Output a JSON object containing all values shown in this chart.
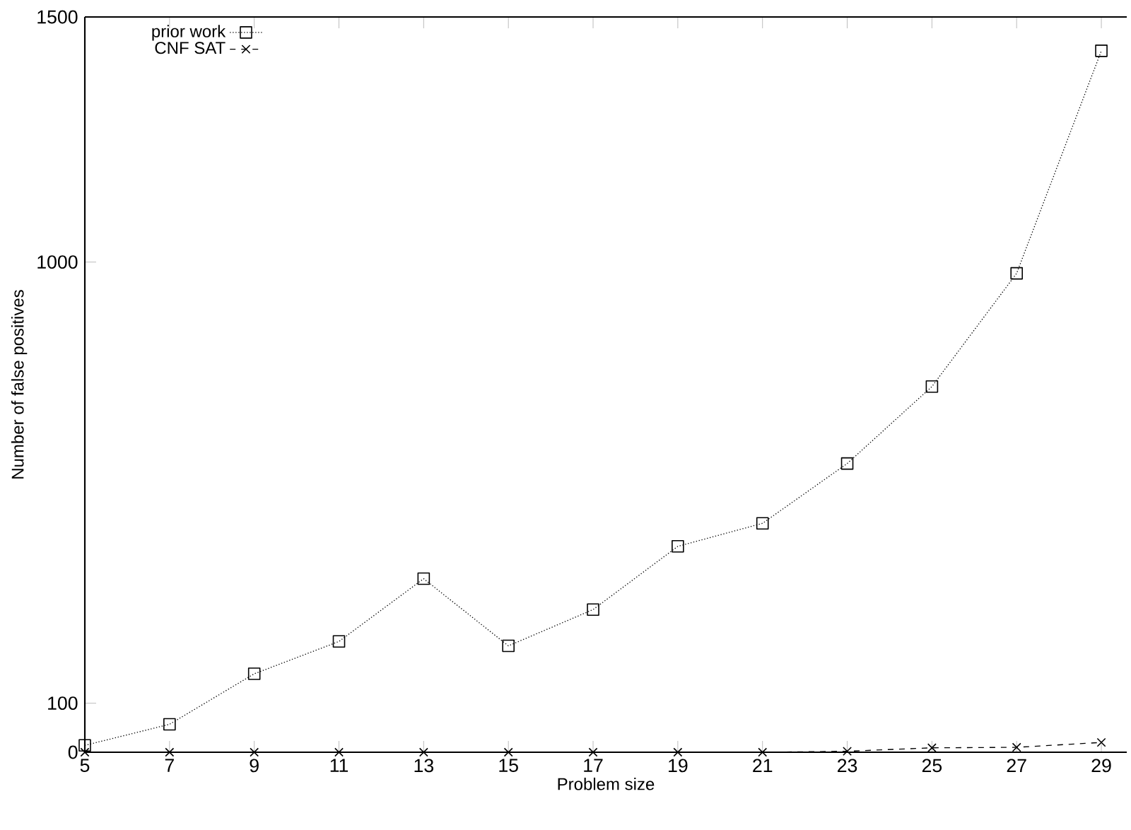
{
  "chart_data": {
    "type": "line",
    "xlabel": "Problem size",
    "ylabel": "Number of false positives",
    "x": [
      5,
      7,
      9,
      11,
      13,
      15,
      17,
      19,
      21,
      23,
      25,
      27,
      29
    ],
    "series": [
      {
        "name": "prior work",
        "color": "#000000",
        "marker": "square",
        "line_style": "dotted",
        "values": [
          14,
          57,
          160,
          226,
          354,
          217,
          291,
          420,
          467,
          589,
          746,
          977,
          1431
        ]
      },
      {
        "name": "CNF SAT",
        "color": "#000000",
        "marker": "cross",
        "line_style": "dashed",
        "values": [
          0,
          0,
          0,
          0,
          0,
          0,
          0,
          0,
          0,
          2,
          9,
          10,
          20
        ]
      }
    ],
    "xlim": [
      5,
      29.6
    ],
    "ylim": [
      0,
      1500
    ],
    "xticks": [
      5,
      7,
      9,
      11,
      13,
      15,
      17,
      19,
      21,
      23,
      25,
      27,
      29
    ],
    "yticks": [
      0,
      100,
      1000,
      1500
    ],
    "legend": "top left",
    "grid": false
  }
}
